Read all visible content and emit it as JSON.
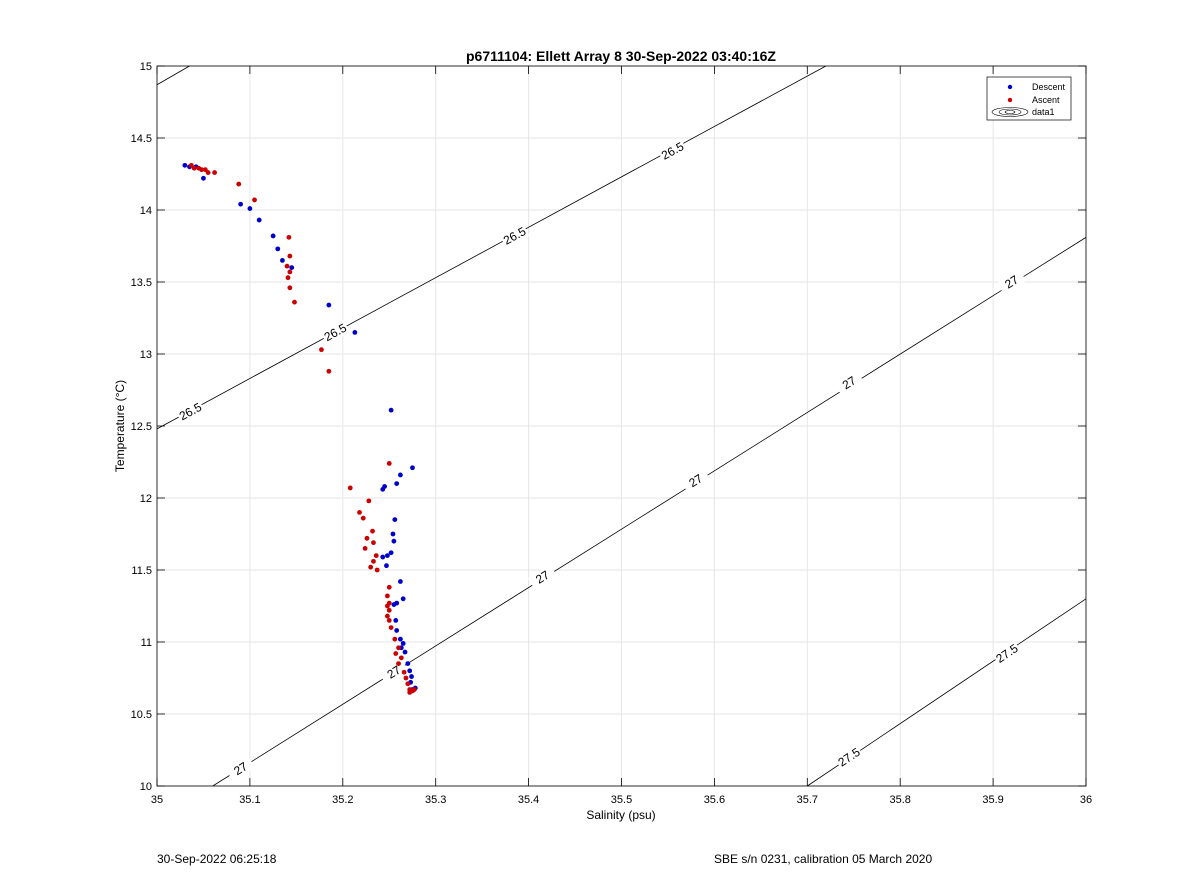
{
  "chart_data": {
    "type": "scatter",
    "title": "p6711104: Ellett Array 8 30-Sep-2022 03:40:16Z",
    "xlabel": "Salinity (psu)",
    "ylabel": "Temperature (°C)",
    "xlim": [
      35,
      36
    ],
    "ylim": [
      10,
      15
    ],
    "xticks": [
      "35",
      "35.1",
      "35.2",
      "35.3",
      "35.4",
      "35.5",
      "35.6",
      "35.7",
      "35.8",
      "35.9",
      "36"
    ],
    "yticks": [
      "10",
      "10.5",
      "11",
      "11.5",
      "12",
      "12.5",
      "13",
      "13.5",
      "14",
      "14.5",
      "15"
    ],
    "grid": true,
    "legend_position": "top-right",
    "legend": [
      "Descent",
      "Ascent",
      "data1"
    ],
    "colors": {
      "descent": "#0000cc",
      "ascent": "#cc0000",
      "contour": "#000000",
      "grid": "#e6e6e6"
    },
    "series": [
      {
        "name": "Descent",
        "points": [
          [
            35.03,
            14.31
          ],
          [
            35.035,
            14.3
          ],
          [
            35.042,
            14.3
          ],
          [
            35.05,
            14.22
          ],
          [
            35.09,
            14.04
          ],
          [
            35.1,
            14.01
          ],
          [
            35.11,
            13.93
          ],
          [
            35.125,
            13.82
          ],
          [
            35.13,
            13.73
          ],
          [
            35.135,
            13.65
          ],
          [
            35.145,
            13.6
          ],
          [
            35.185,
            13.34
          ],
          [
            35.213,
            13.15
          ],
          [
            35.252,
            12.61
          ],
          [
            35.275,
            12.21
          ],
          [
            35.262,
            12.16
          ],
          [
            35.258,
            12.1
          ],
          [
            35.245,
            12.08
          ],
          [
            35.243,
            12.06
          ],
          [
            35.256,
            11.85
          ],
          [
            35.254,
            11.75
          ],
          [
            35.255,
            11.7
          ],
          [
            35.252,
            11.62
          ],
          [
            35.248,
            11.6
          ],
          [
            35.243,
            11.59
          ],
          [
            35.247,
            11.53
          ],
          [
            35.262,
            11.42
          ],
          [
            35.265,
            11.3
          ],
          [
            35.258,
            11.27
          ],
          [
            35.255,
            11.26
          ],
          [
            35.257,
            11.15
          ],
          [
            35.258,
            11.08
          ],
          [
            35.262,
            11.02
          ],
          [
            35.265,
            10.99
          ],
          [
            35.263,
            10.96
          ],
          [
            35.267,
            10.93
          ],
          [
            35.27,
            10.85
          ],
          [
            35.272,
            10.8
          ],
          [
            35.274,
            10.76
          ],
          [
            35.273,
            10.72
          ],
          [
            35.278,
            10.68
          ],
          [
            35.275,
            10.67
          ]
        ]
      },
      {
        "name": "Ascent",
        "points": [
          [
            35.037,
            14.31
          ],
          [
            35.04,
            14.29
          ],
          [
            35.045,
            14.29
          ],
          [
            35.048,
            14.28
          ],
          [
            35.052,
            14.28
          ],
          [
            35.055,
            14.26
          ],
          [
            35.062,
            14.26
          ],
          [
            35.088,
            14.18
          ],
          [
            35.105,
            14.07
          ],
          [
            35.142,
            13.81
          ],
          [
            35.143,
            13.68
          ],
          [
            35.14,
            13.61
          ],
          [
            35.143,
            13.57
          ],
          [
            35.141,
            13.53
          ],
          [
            35.143,
            13.46
          ],
          [
            35.148,
            13.36
          ],
          [
            35.177,
            13.03
          ],
          [
            35.185,
            12.88
          ],
          [
            35.208,
            12.07
          ],
          [
            35.25,
            12.24
          ],
          [
            35.228,
            11.98
          ],
          [
            35.218,
            11.9
          ],
          [
            35.222,
            11.86
          ],
          [
            35.232,
            11.77
          ],
          [
            35.226,
            11.72
          ],
          [
            35.233,
            11.69
          ],
          [
            35.224,
            11.65
          ],
          [
            35.236,
            11.6
          ],
          [
            35.233,
            11.56
          ],
          [
            35.23,
            11.52
          ],
          [
            35.237,
            11.5
          ],
          [
            35.25,
            11.38
          ],
          [
            35.248,
            11.32
          ],
          [
            35.25,
            11.27
          ],
          [
            35.248,
            11.25
          ],
          [
            35.25,
            11.22
          ],
          [
            35.248,
            11.18
          ],
          [
            35.25,
            11.15
          ],
          [
            35.252,
            11.1
          ],
          [
            35.256,
            11.02
          ],
          [
            35.26,
            10.96
          ],
          [
            35.257,
            10.92
          ],
          [
            35.263,
            10.89
          ],
          [
            35.26,
            10.85
          ],
          [
            35.266,
            10.79
          ],
          [
            35.268,
            10.75
          ],
          [
            35.27,
            10.71
          ],
          [
            35.272,
            10.67
          ],
          [
            35.275,
            10.66
          ],
          [
            35.272,
            10.65
          ],
          [
            35.277,
            10.67
          ]
        ]
      }
    ],
    "contours": [
      {
        "level": "26.5",
        "segment": [
          [
            35.0,
            12.48
          ],
          [
            35.72,
            15.0
          ]
        ],
        "labels": [
          [
            35.036,
            12.6
          ],
          [
            35.192,
            13.15
          ],
          [
            35.385,
            13.82
          ],
          [
            35.555,
            14.41
          ]
        ],
        "extra_segment": [
          [
            35.0,
            14.87
          ],
          [
            35.035,
            15.0
          ]
        ]
      },
      {
        "level": "27",
        "segment": [
          [
            35.06,
            10.0
          ],
          [
            36.0,
            13.81
          ]
        ],
        "labels": [
          [
            35.09,
            10.12
          ],
          [
            35.255,
            10.79
          ],
          [
            35.415,
            11.45
          ],
          [
            35.58,
            12.12
          ],
          [
            35.745,
            12.8
          ],
          [
            35.92,
            13.5
          ]
        ]
      },
      {
        "level": "27.5",
        "segment": [
          [
            35.7,
            10.0
          ],
          [
            36.0,
            11.3
          ]
        ],
        "labels": [
          [
            35.745,
            10.2
          ],
          [
            35.915,
            10.92
          ]
        ]
      }
    ]
  },
  "footer": {
    "timestamp": "30-Sep-2022 06:25:18",
    "calibration": "SBE s/n 0231, calibration 05 March 2020"
  }
}
